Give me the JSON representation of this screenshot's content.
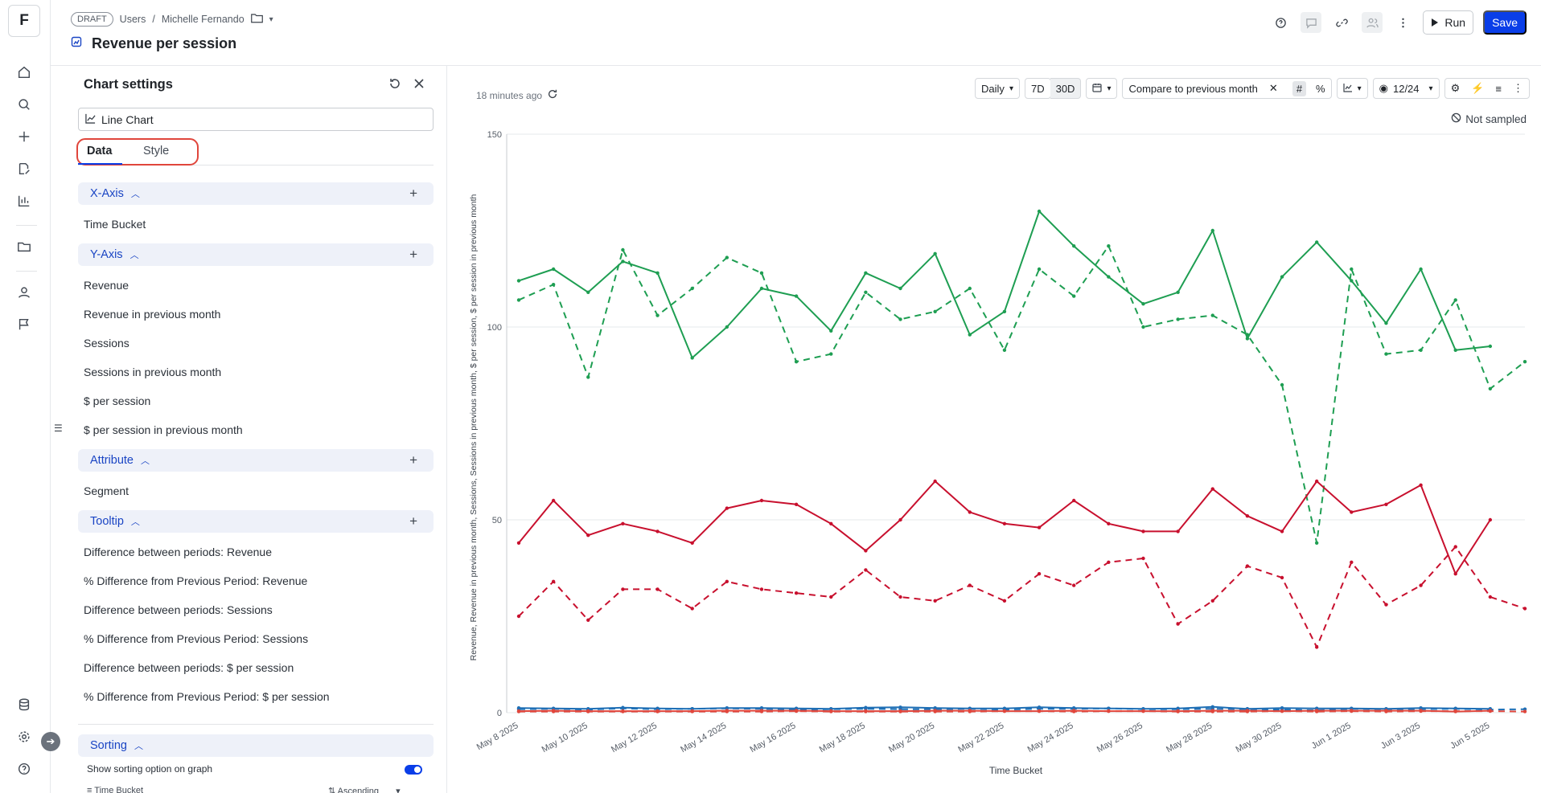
{
  "rail": {
    "logo": "F",
    "icons": [
      "home-icon",
      "search-icon",
      "plus-icon",
      "edit-doc-icon",
      "chart-icon",
      "folder-icon",
      "user-icon",
      "flag-icon",
      "database-icon",
      "gear-icon",
      "help-icon"
    ]
  },
  "header": {
    "draft": "DRAFT",
    "crumb1": "Users",
    "slash": "/",
    "crumb2": "Michelle Fernando",
    "title": "Revenue per session",
    "run": "Run",
    "save": "Save"
  },
  "settings": {
    "title": "Chart settings",
    "chart_type": "Line Chart",
    "tab_data": "Data",
    "tab_style": "Style",
    "x_axis": {
      "label": "X-Axis",
      "items": [
        "Time Bucket"
      ]
    },
    "y_axis": {
      "label": "Y-Axis",
      "items": [
        "Revenue",
        "Revenue in previous month",
        "Sessions",
        "Sessions in previous month",
        "$ per session",
        "$ per session in previous month"
      ]
    },
    "attribute": {
      "label": "Attribute",
      "items": [
        "Segment"
      ]
    },
    "tooltip": {
      "label": "Tooltip",
      "items": [
        "Difference between periods: Revenue",
        "% Difference from Previous Period: Revenue",
        "Difference between periods: Sessions",
        "% Difference from Previous Period: Sessions",
        "Difference between periods: $ per session",
        "% Difference from Previous Period: $ per session"
      ]
    },
    "sorting": {
      "label": "Sorting",
      "show_option": "Show sorting option on graph",
      "toggle_on": true,
      "field": "Time Bucket",
      "order": "Ascending"
    }
  },
  "toolbar": {
    "updated": "18 minutes ago",
    "granularity": "Daily",
    "range_7d": "7D",
    "range_30d": "30D",
    "compare": "Compare to previous month",
    "visible_series": "12/24",
    "not_sampled": "Not sampled"
  },
  "chart_data": {
    "type": "line",
    "xlabel": "Time Bucket",
    "ylabel": "Revenue, Revenue in previous month, Sessions, Sessions in previous month, $ per session, $ per session in previous month",
    "ylim": [
      0,
      150
    ],
    "yticks": [
      0,
      50,
      100,
      150
    ],
    "xtick_labels": [
      "May 8 2025",
      "May 10 2025",
      "May 12 2025",
      "May 14 2025",
      "May 16 2025",
      "May 18 2025",
      "May 20 2025",
      "May 22 2025",
      "May 24 2025",
      "May 26 2025",
      "May 28 2025",
      "May 30 2025",
      "Jun 1 2025",
      "Jun 3 2025",
      "Jun 5 2025"
    ],
    "x": [
      "May 8 2025",
      "May 9 2025",
      "May 10 2025",
      "May 11 2025",
      "May 12 2025",
      "May 13 2025",
      "May 14 2025",
      "May 15 2025",
      "May 16 2025",
      "May 17 2025",
      "May 18 2025",
      "May 19 2025",
      "May 20 2025",
      "May 21 2025",
      "May 22 2025",
      "May 23 2025",
      "May 24 2025",
      "May 25 2025",
      "May 26 2025",
      "May 27 2025",
      "May 28 2025",
      "May 29 2025",
      "May 30 2025",
      "May 31 2025",
      "Jun 1 2025",
      "Jun 2 2025",
      "Jun 3 2025",
      "Jun 4 2025",
      "Jun 5 2025",
      "Jun 6 2025"
    ],
    "series": [
      {
        "color": "#1e9e52",
        "dashed": false,
        "values": [
          112,
          115,
          109,
          117,
          114,
          92,
          100,
          110,
          108,
          99,
          114,
          110,
          119,
          98,
          104,
          130,
          121,
          113,
          106,
          109,
          125,
          97,
          113,
          122,
          112,
          101,
          115,
          94,
          95,
          null
        ]
      },
      {
        "color": "#1e9e52",
        "dashed": true,
        "values": [
          107,
          111,
          87,
          120,
          103,
          110,
          118,
          114,
          91,
          93,
          109,
          102,
          104,
          110,
          94,
          115,
          108,
          121,
          100,
          102,
          103,
          98,
          85,
          44,
          115,
          93,
          94,
          107,
          84,
          91
        ]
      },
      {
        "color": "#c8102e",
        "dashed": false,
        "values": [
          44,
          55,
          46,
          49,
          47,
          44,
          53,
          55,
          54,
          49,
          42,
          50,
          60,
          52,
          49,
          48,
          55,
          49,
          47,
          47,
          58,
          51,
          47,
          60,
          52,
          54,
          59,
          36,
          50,
          null
        ]
      },
      {
        "color": "#c8102e",
        "dashed": true,
        "values": [
          25,
          34,
          24,
          32,
          32,
          27,
          34,
          32,
          31,
          30,
          37,
          30,
          29,
          33,
          29,
          36,
          33,
          39,
          40,
          23,
          29,
          38,
          35,
          17,
          39,
          28,
          33,
          43,
          30,
          27
        ]
      },
      {
        "color": "#1f6fb5",
        "dashed": false,
        "values": [
          1.2,
          1.1,
          1.0,
          1.3,
          1.1,
          1.0,
          1.2,
          1.2,
          1.1,
          1.0,
          1.3,
          1.4,
          1.2,
          1.1,
          1.1,
          1.4,
          1.2,
          1.1,
          1.0,
          1.1,
          1.5,
          1.0,
          1.2,
          1.1,
          1.1,
          1.0,
          1.2,
          1.1,
          1.0,
          null
        ]
      },
      {
        "color": "#1f6fb5",
        "dashed": true,
        "values": [
          0.9,
          1.0,
          0.8,
          1.1,
          0.9,
          1.0,
          1.1,
          1.0,
          0.8,
          0.9,
          1.0,
          0.9,
          0.9,
          1.0,
          0.8,
          1.0,
          1.0,
          1.1,
          0.9,
          0.9,
          1.0,
          0.9,
          0.8,
          0.6,
          1.0,
          0.9,
          0.9,
          1.0,
          0.8,
          0.9
        ]
      },
      {
        "color": "#e0463c",
        "dashed": false,
        "values": [
          0.4,
          0.5,
          0.4,
          0.4,
          0.4,
          0.4,
          0.5,
          0.5,
          0.5,
          0.4,
          0.4,
          0.4,
          0.5,
          0.5,
          0.4,
          0.4,
          0.5,
          0.4,
          0.4,
          0.4,
          0.5,
          0.5,
          0.4,
          0.5,
          0.5,
          0.5,
          0.5,
          0.3,
          0.5,
          null
        ]
      },
      {
        "color": "#e0463c",
        "dashed": true,
        "values": [
          0.3,
          0.3,
          0.3,
          0.3,
          0.3,
          0.3,
          0.3,
          0.3,
          0.4,
          0.3,
          0.3,
          0.3,
          0.3,
          0.3,
          0.4,
          0.4,
          0.3,
          0.4,
          0.4,
          0.3,
          0.3,
          0.3,
          0.4,
          0.3,
          0.4,
          0.3,
          0.4,
          0.4,
          0.4,
          0.3
        ]
      }
    ]
  }
}
